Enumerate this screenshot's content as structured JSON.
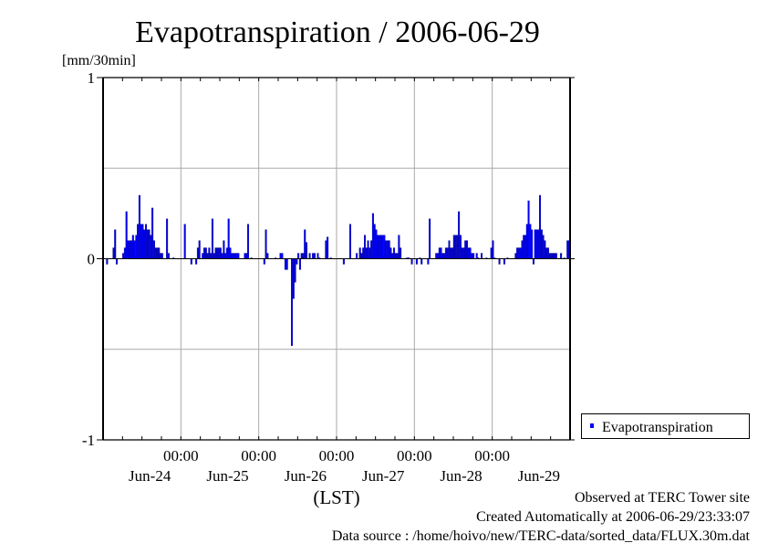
{
  "chart_data": {
    "type": "bar",
    "title": "Evapotranspiration / 2006-06-29",
    "ylabel": "[mm/30min]",
    "xlabel": "(LST)",
    "ylim": [
      -1,
      1
    ],
    "yticks": [
      "1",
      "0",
      "-1"
    ],
    "ytick_values": [
      1,
      0,
      -1
    ],
    "xticks": [
      {
        "time": "00:00",
        "date": "Jun-24"
      },
      {
        "time": "00:00",
        "date": "Jun-25"
      },
      {
        "time": "00:00",
        "date": "Jun-26"
      },
      {
        "time": "00:00",
        "date": "Jun-27"
      },
      {
        "time": "00:00",
        "date": "Jun-28"
      },
      {
        "time": "00:00",
        "date": "Jun-29"
      }
    ],
    "interval_minutes": 30,
    "grid": true,
    "legend_position": "bottom-right",
    "series": [
      {
        "name": "Evapotranspiration",
        "color": "#0000ff",
        "days": [
          [
            0,
            0,
            -0.03,
            0,
            0,
            0,
            0.06,
            0.16,
            -0.03,
            0,
            0,
            0,
            0.03,
            0.06,
            0.26,
            0.1,
            0.1,
            0.1,
            0.13,
            0.1,
            0.13,
            0.19,
            0.35,
            0.19,
            0.19,
            0.16,
            0.19,
            0.16,
            0.16,
            0.13,
            0.28,
            0.1,
            0.06,
            0.06,
            0.06,
            0.03,
            0.03,
            0,
            0,
            0.22,
            0.03,
            0,
            0,
            0.005,
            0,
            0,
            0,
            0
          ],
          [
            0,
            0,
            0.19,
            0,
            0,
            0,
            -0.03,
            0,
            0,
            -0.03,
            0.06,
            0.1,
            0,
            0.03,
            0.06,
            0.06,
            0.03,
            0.06,
            0.03,
            0.22,
            0.03,
            0.06,
            0.06,
            0.06,
            0.06,
            0.03,
            0.1,
            0.03,
            0.06,
            0.22,
            0.06,
            0.03,
            0.03,
            0.03,
            0.03,
            0.03,
            0,
            0,
            0,
            0.03,
            0.03,
            0.19,
            0,
            0.005,
            0,
            0,
            0,
            0
          ],
          [
            0,
            0,
            0,
            -0.03,
            0.16,
            0.03,
            0,
            0,
            0,
            0,
            0.005,
            0,
            0,
            0.03,
            0.03,
            0,
            -0.06,
            -0.06,
            0,
            0,
            -0.48,
            -0.22,
            -0.13,
            -0.03,
            0.03,
            -0.06,
            0.03,
            0.03,
            0.16,
            0.09,
            0,
            0.03,
            0,
            0.03,
            0.03,
            0,
            0.03,
            0.005,
            0,
            0,
            0,
            0.1,
            0.12,
            0,
            0.005,
            0,
            0,
            0
          ],
          [
            0,
            0,
            0,
            0,
            -0.03,
            0,
            0,
            0,
            0.19,
            0,
            0,
            0,
            0.03,
            0,
            0.06,
            0.03,
            0.06,
            0.13,
            0.06,
            0.1,
            0.06,
            0.1,
            0.25,
            0.19,
            0.16,
            0.13,
            0.13,
            0.13,
            0.13,
            0.13,
            0.1,
            0.1,
            0.1,
            0.06,
            0.03,
            0.06,
            0.03,
            0.03,
            0.13,
            0.06,
            0,
            0,
            0,
            0.005,
            0.005,
            0,
            -0.03,
            0
          ],
          [
            0,
            -0.03,
            0,
            0.005,
            -0.03,
            0,
            0,
            0,
            -0.03,
            0.22,
            0,
            0,
            0,
            0.03,
            0.03,
            0.06,
            0.06,
            0.03,
            0.03,
            0.06,
            0.06,
            0.1,
            0.06,
            0.06,
            0.13,
            0.13,
            0.13,
            0.26,
            0.13,
            0.06,
            0.06,
            0.1,
            0.1,
            0.06,
            0.06,
            0.03,
            0.03,
            0,
            0.03,
            0.005,
            0,
            0.03,
            0,
            0,
            0.005,
            0,
            0,
            0.06
          ],
          [
            0.1,
            0.005,
            0,
            0,
            -0.03,
            0,
            0,
            -0.03,
            0,
            0.005,
            0,
            0,
            0,
            0,
            0.03,
            0.06,
            0.06,
            0.06,
            0.1,
            0.13,
            0.13,
            0.19,
            0.32,
            0.19,
            0.16,
            -0.03,
            0.16,
            0.16,
            0.16,
            0.35,
            0.16,
            0.13,
            0.1,
            0.06,
            0.06,
            0.03,
            0.03,
            0.03,
            0.03,
            0.03,
            0,
            0,
            0.03,
            0,
            0.005,
            0,
            0.1,
            0.1
          ]
        ]
      }
    ]
  },
  "footer": {
    "observed": "Observed at TERC Tower site",
    "created": "Created Automatically at 2006-06-29/23:33:07",
    "source": "Data source : /home/hoivo/new/TERC-data/sorted_data/FLUX.30m.dat"
  }
}
